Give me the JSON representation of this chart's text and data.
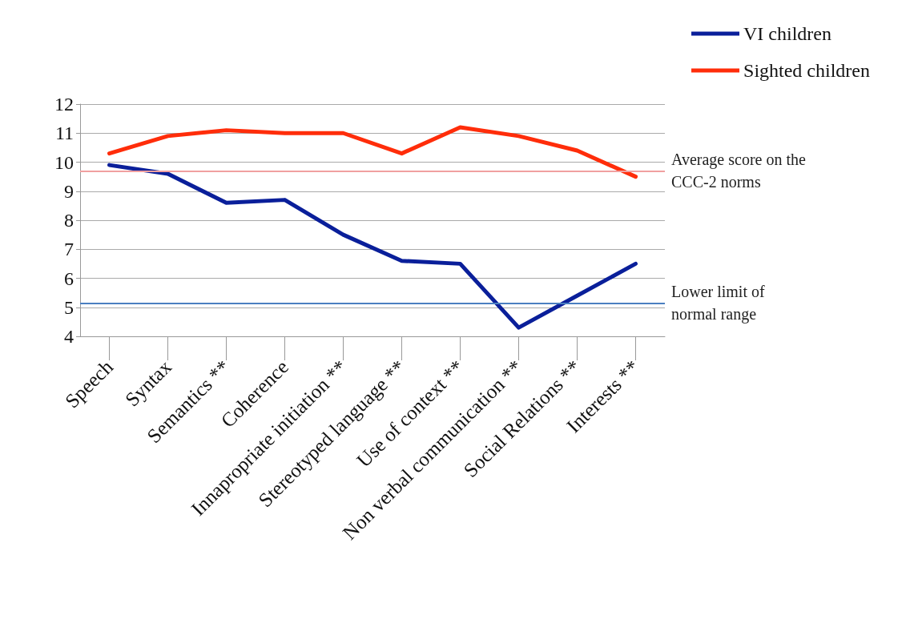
{
  "chart_data": {
    "type": "line",
    "categories": [
      "Speech",
      "Syntax",
      "Semantics **",
      "Coherence",
      "Innapropriate initiation **",
      "Stereotyped language **",
      "Use of context **",
      "Non verbal communication **",
      "Social Relations **",
      "Interests **"
    ],
    "series": [
      {
        "name": "VI children",
        "color": "#0a1f9a",
        "values": [
          9.9,
          9.6,
          8.6,
          8.7,
          7.5,
          6.6,
          6.5,
          4.3,
          5.4,
          6.5
        ]
      },
      {
        "name": "Sighted children",
        "color": "#ff2d0a",
        "values": [
          10.3,
          10.9,
          11.1,
          11.0,
          11.0,
          10.3,
          11.2,
          10.9,
          10.4,
          9.5
        ]
      }
    ],
    "ylim": [
      4,
      12
    ],
    "yticks": [
      4,
      5,
      6,
      7,
      8,
      9,
      10,
      11,
      12
    ],
    "ref_lines": [
      {
        "axis": "y",
        "value": 9.7,
        "label": "Average score on the CCC-2 norms",
        "color": "#f0a0a0"
      },
      {
        "axis": "y",
        "value": 5.15,
        "label": "Lower limit of normal range",
        "color": "#4a7fc0"
      }
    ],
    "grid": "y",
    "legend": "top right",
    "marker": "none",
    "line_style": "solid"
  }
}
